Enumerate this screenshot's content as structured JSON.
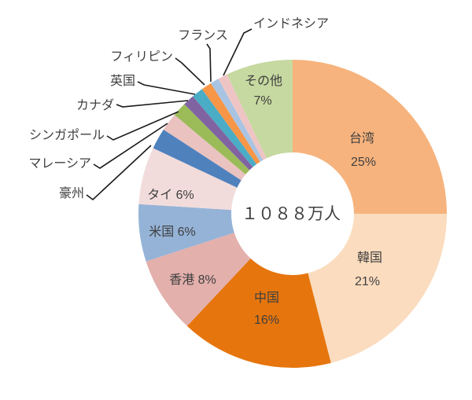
{
  "chart_data": {
    "type": "pie",
    "subtype": "donut",
    "center_label": "１０８８万人",
    "unit": "%",
    "legend_position": "none",
    "grid": false,
    "slices": [
      {
        "id": "taiwan",
        "label": "台湾",
        "value": 25,
        "value_label": "25%",
        "color": "#F6B37D"
      },
      {
        "id": "korea",
        "label": "韓国",
        "value": 21,
        "value_label": "21%",
        "color": "#FBDCBE"
      },
      {
        "id": "china",
        "label": "中国",
        "value": 16,
        "value_label": "16%",
        "color": "#E6750D"
      },
      {
        "id": "hongkong",
        "label": "香港",
        "value": 8,
        "value_label": "8%",
        "color": "#E3B0AC"
      },
      {
        "id": "usa",
        "label": "米国",
        "value": 6,
        "value_label": "6%",
        "color": "#95B3D7"
      },
      {
        "id": "thailand",
        "label": "タイ",
        "value": 6,
        "value_label": "6%",
        "color": "#F2DCDB"
      },
      {
        "id": "australia",
        "label": "豪州",
        "value": 2.2,
        "value_label": null,
        "color": "#4F81BD"
      },
      {
        "id": "malaysia",
        "label": "マレーシア",
        "value": 1.9,
        "value_label": null,
        "color": "#EAC2BF"
      },
      {
        "id": "singapore",
        "label": "シンガポール",
        "value": 1.5,
        "value_label": null,
        "color": "#9BBB59"
      },
      {
        "id": "canada",
        "label": "カナダ",
        "value": 1.2,
        "value_label": null,
        "color": "#8064A2"
      },
      {
        "id": "uk",
        "label": "英国",
        "value": 1.2,
        "value_label": null,
        "color": "#4BACC6"
      },
      {
        "id": "philippines",
        "label": "フィリピン",
        "value": 1.1,
        "value_label": null,
        "color": "#F79646"
      },
      {
        "id": "france",
        "label": "フランス",
        "value": 0.9,
        "value_label": null,
        "color": "#A9C4E3"
      },
      {
        "id": "indonesia",
        "label": "インドネシア",
        "value": 1.0,
        "value_label": null,
        "color": "#EEC5C4"
      },
      {
        "id": "others",
        "label": "その他",
        "value": 7,
        "value_label": "7%",
        "color": "#C6D9A0"
      }
    ]
  }
}
